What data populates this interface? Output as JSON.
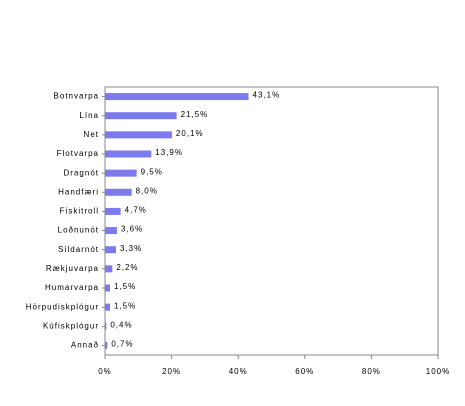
{
  "chart_data": {
    "type": "bar",
    "orientation": "horizontal",
    "categories": [
      "Botnvarpa",
      "Lína",
      "Net",
      "Flotvarpa",
      "Dragnót",
      "Handfæri",
      "Fiskitroll",
      "Loðnunót",
      "Síldarnót",
      "Rækjuvarpa",
      "Humarvarpa",
      "Hörpudiskplógur",
      "Kúfiskplógur",
      "Annað"
    ],
    "values": [
      43.1,
      21.5,
      20.1,
      13.9,
      9.5,
      8.0,
      4.7,
      3.6,
      3.3,
      2.2,
      1.5,
      1.5,
      0.4,
      0.7
    ],
    "value_labels": [
      "43,1%",
      "21,5%",
      "20,1%",
      "13,9%",
      "9,5%",
      "8,0%",
      "4,7%",
      "3,6%",
      "3,3%",
      "2,2%",
      "1,5%",
      "1,5%",
      "0,4%",
      "0,7%"
    ],
    "color": "#7b7bee",
    "xlim": [
      0,
      100
    ],
    "xticks": [
      {
        "value": 0,
        "label": "0%"
      },
      {
        "value": 20,
        "label": "20%"
      },
      {
        "value": 40,
        "label": "40%"
      },
      {
        "value": 60,
        "label": "60%"
      },
      {
        "value": 80,
        "label": "80%"
      },
      {
        "value": 100,
        "label": "100%"
      }
    ]
  }
}
